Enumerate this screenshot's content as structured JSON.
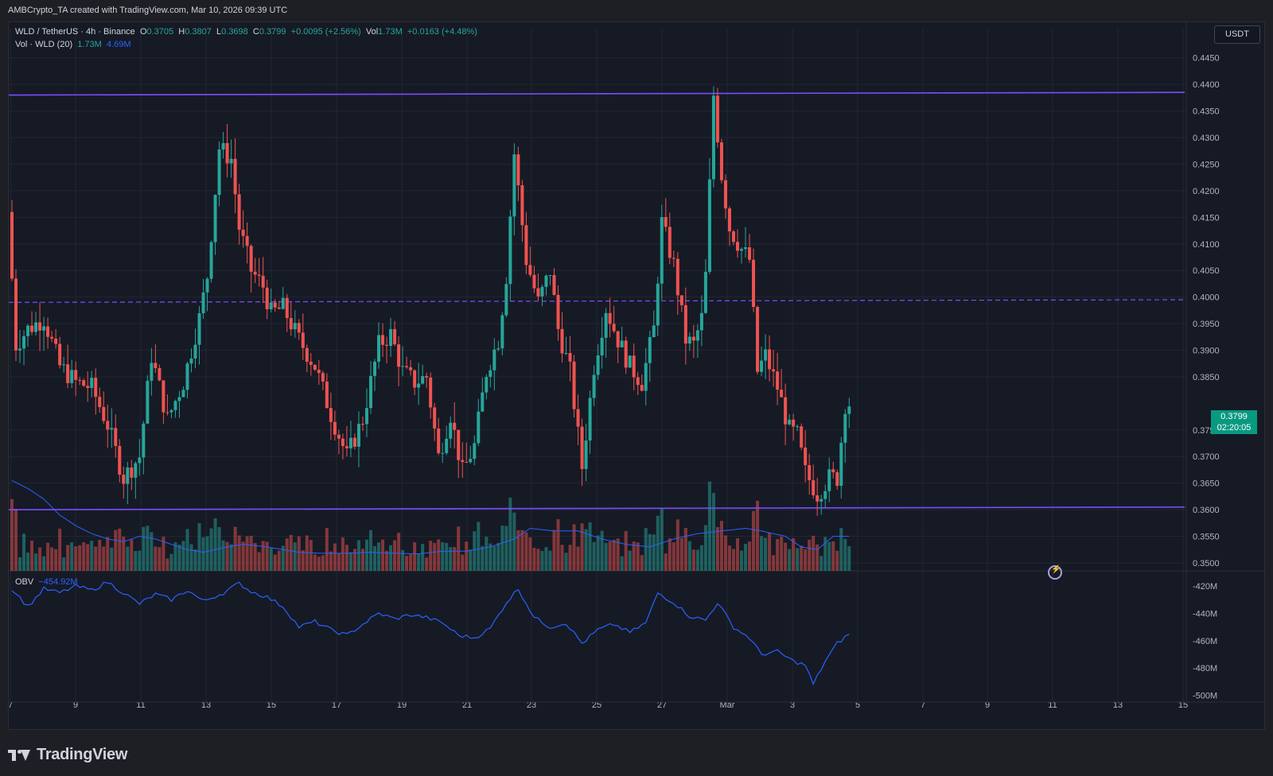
{
  "header": {
    "attribution": "AMBCrypto_TA created with TradingView.com, Mar 10, 2026 09:39 UTC"
  },
  "legend": {
    "symbol": "WLD / TetherUS · 4h · Binance",
    "o_label": "O",
    "o_value": "0.3705",
    "h_label": "H",
    "h_value": "0.3807",
    "l_label": "L",
    "l_value": "0.3698",
    "c_label": "C",
    "c_value": "0.3799",
    "change": "+0.0095 (+2.56%)",
    "vol_label": "Vol",
    "vol_value": "1.73M",
    "vol_change": "+0.0163 (+4.48%)",
    "vol_indicator": "Vol · WLD (20)",
    "vol_ind_v1": "1.73M",
    "vol_ind_v2": "4.69M",
    "obv_label": "OBV",
    "obv_value": "−454.92M"
  },
  "price_axis": {
    "unit": "USDT",
    "ticks": [
      "0.4450",
      "0.4400",
      "0.4350",
      "0.4300",
      "0.4250",
      "0.4200",
      "0.4150",
      "0.4100",
      "0.4050",
      "0.4000",
      "0.3950",
      "0.3900",
      "0.3850",
      "0.3750",
      "0.3700",
      "0.3650",
      "0.3600",
      "0.3550",
      "0.3500"
    ],
    "last_price": "0.3799",
    "countdown": "02:20:05"
  },
  "obv_axis": {
    "ticks": [
      "-420M",
      "-440M",
      "-460M",
      "-480M",
      "-500M"
    ]
  },
  "time_axis": {
    "ticks": [
      "7",
      "9",
      "11",
      "13",
      "15",
      "17",
      "19",
      "21",
      "23",
      "25",
      "27",
      "Mar",
      "3",
      "5",
      "7",
      "9",
      "11",
      "13",
      "15"
    ]
  },
  "colors": {
    "up": "#26a69a",
    "down": "#ef5350",
    "level": "#7b4dff",
    "ma": "#2962ff",
    "obv": "#2962ff",
    "background": "#161a25"
  },
  "brand": {
    "name": "TradingView"
  },
  "chart_data": {
    "type": "candlestick",
    "symbol": "WLD / TetherUS",
    "timeframe": "4h",
    "exchange": "Binance",
    "price_range": [
      0.3485,
      0.4475
    ],
    "levels": [
      {
        "style": "solid",
        "start": 0.438,
        "end": 0.4385
      },
      {
        "style": "dashed",
        "start": 0.399,
        "end": 0.3995
      },
      {
        "style": "solid",
        "start": 0.36,
        "end": 0.3605
      }
    ],
    "price_path_knots": [
      [
        0,
        0.416
      ],
      [
        2,
        0.391
      ],
      [
        5,
        0.394
      ],
      [
        9,
        0.396
      ],
      [
        13,
        0.387
      ],
      [
        17,
        0.384
      ],
      [
        21,
        0.383
      ],
      [
        25,
        0.376
      ],
      [
        29,
        0.366
      ],
      [
        33,
        0.37
      ],
      [
        36,
        0.389
      ],
      [
        40,
        0.377
      ],
      [
        44,
        0.384
      ],
      [
        48,
        0.396
      ],
      [
        50,
        0.404
      ],
      [
        53,
        0.428
      ],
      [
        56,
        0.426
      ],
      [
        58,
        0.413
      ],
      [
        61,
        0.405
      ],
      [
        64,
        0.402
      ],
      [
        66,
        0.397
      ],
      [
        69,
        0.398
      ],
      [
        73,
        0.392
      ],
      [
        77,
        0.387
      ],
      [
        81,
        0.378
      ],
      [
        85,
        0.37
      ],
      [
        89,
        0.377
      ],
      [
        93,
        0.391
      ],
      [
        96,
        0.393
      ],
      [
        99,
        0.386
      ],
      [
        102,
        0.384
      ],
      [
        105,
        0.385
      ],
      [
        108,
        0.37
      ],
      [
        111,
        0.378
      ],
      [
        114,
        0.367
      ],
      [
        117,
        0.372
      ],
      [
        120,
        0.386
      ],
      [
        123,
        0.392
      ],
      [
        125,
        0.404
      ],
      [
        127,
        0.427
      ],
      [
        130,
        0.407
      ],
      [
        133,
        0.399
      ],
      [
        136,
        0.405
      ],
      [
        138,
        0.394
      ],
      [
        141,
        0.386
      ],
      [
        144,
        0.368
      ],
      [
        147,
        0.387
      ],
      [
        150,
        0.398
      ],
      [
        153,
        0.392
      ],
      [
        156,
        0.387
      ],
      [
        159,
        0.384
      ],
      [
        162,
        0.394
      ],
      [
        164,
        0.414
      ],
      [
        167,
        0.406
      ],
      [
        170,
        0.392
      ],
      [
        172,
        0.391
      ],
      [
        174,
        0.396
      ],
      [
        175,
        0.404
      ],
      [
        177,
        0.438
      ],
      [
        179,
        0.423
      ],
      [
        181,
        0.413
      ],
      [
        184,
        0.409
      ],
      [
        186,
        0.407
      ],
      [
        188,
        0.386
      ],
      [
        190,
        0.389
      ],
      [
        193,
        0.383
      ],
      [
        196,
        0.375
      ],
      [
        198,
        0.374
      ],
      [
        200,
        0.367
      ],
      [
        203,
        0.363
      ],
      [
        206,
        0.366
      ],
      [
        208,
        0.366
      ],
      [
        210,
        0.38
      ]
    ],
    "total_candles": 211,
    "volume_axis_note": "volume bars overlaid at bottom of price pane with 20-period MA",
    "obv_range": [
      -505,
      -410
    ],
    "obv_knots": [
      [
        0,
        -422
      ],
      [
        4,
        -435
      ],
      [
        8,
        -422
      ],
      [
        12,
        -425
      ],
      [
        16,
        -420
      ],
      [
        20,
        -423
      ],
      [
        24,
        -417
      ],
      [
        28,
        -425
      ],
      [
        32,
        -433
      ],
      [
        36,
        -426
      ],
      [
        40,
        -430
      ],
      [
        44,
        -423
      ],
      [
        48,
        -431
      ],
      [
        53,
        -425
      ],
      [
        57,
        -418
      ],
      [
        60,
        -424
      ],
      [
        64,
        -428
      ],
      [
        68,
        -435
      ],
      [
        72,
        -450
      ],
      [
        76,
        -446
      ],
      [
        80,
        -452
      ],
      [
        84,
        -456
      ],
      [
        88,
        -448
      ],
      [
        92,
        -440
      ],
      [
        96,
        -444
      ],
      [
        100,
        -441
      ],
      [
        104,
        -443
      ],
      [
        108,
        -447
      ],
      [
        112,
        -456
      ],
      [
        116,
        -458
      ],
      [
        120,
        -451
      ],
      [
        124,
        -432
      ],
      [
        127,
        -422
      ],
      [
        131,
        -443
      ],
      [
        135,
        -450
      ],
      [
        139,
        -447
      ],
      [
        143,
        -462
      ],
      [
        147,
        -452
      ],
      [
        151,
        -448
      ],
      [
        155,
        -454
      ],
      [
        159,
        -447
      ],
      [
        162,
        -425
      ],
      [
        166,
        -432
      ],
      [
        170,
        -442
      ],
      [
        174,
        -445
      ],
      [
        177,
        -432
      ],
      [
        181,
        -450
      ],
      [
        185,
        -458
      ],
      [
        188,
        -470
      ],
      [
        192,
        -468
      ],
      [
        196,
        -475
      ],
      [
        199,
        -478
      ],
      [
        201,
        -492
      ],
      [
        204,
        -475
      ],
      [
        207,
        -462
      ],
      [
        210,
        -455
      ]
    ],
    "ma_vol_knots": [
      [
        0,
        0.3655
      ],
      [
        4,
        0.364
      ],
      [
        8,
        0.362
      ],
      [
        12,
        0.359
      ],
      [
        16,
        0.357
      ],
      [
        20,
        0.3555
      ],
      [
        24,
        0.3545
      ],
      [
        28,
        0.354
      ],
      [
        32,
        0.355
      ],
      [
        36,
        0.3545
      ],
      [
        40,
        0.3535
      ],
      [
        44,
        0.3525
      ],
      [
        48,
        0.352
      ],
      [
        54,
        0.353
      ],
      [
        58,
        0.3535
      ],
      [
        64,
        0.353
      ],
      [
        68,
        0.3525
      ],
      [
        72,
        0.352
      ],
      [
        78,
        0.3518
      ],
      [
        84,
        0.3518
      ],
      [
        90,
        0.352
      ],
      [
        96,
        0.3518
      ],
      [
        102,
        0.3517
      ],
      [
        108,
        0.3522
      ],
      [
        114,
        0.3522
      ],
      [
        120,
        0.353
      ],
      [
        126,
        0.3545
      ],
      [
        130,
        0.3565
      ],
      [
        136,
        0.356
      ],
      [
        142,
        0.356
      ],
      [
        148,
        0.3545
      ],
      [
        154,
        0.3535
      ],
      [
        160,
        0.353
      ],
      [
        166,
        0.3545
      ],
      [
        172,
        0.3555
      ],
      [
        178,
        0.356
      ],
      [
        184,
        0.3565
      ],
      [
        188,
        0.356
      ],
      [
        194,
        0.355
      ],
      [
        198,
        0.353
      ],
      [
        202,
        0.3525
      ],
      [
        206,
        0.355
      ],
      [
        210,
        0.355
      ]
    ]
  }
}
